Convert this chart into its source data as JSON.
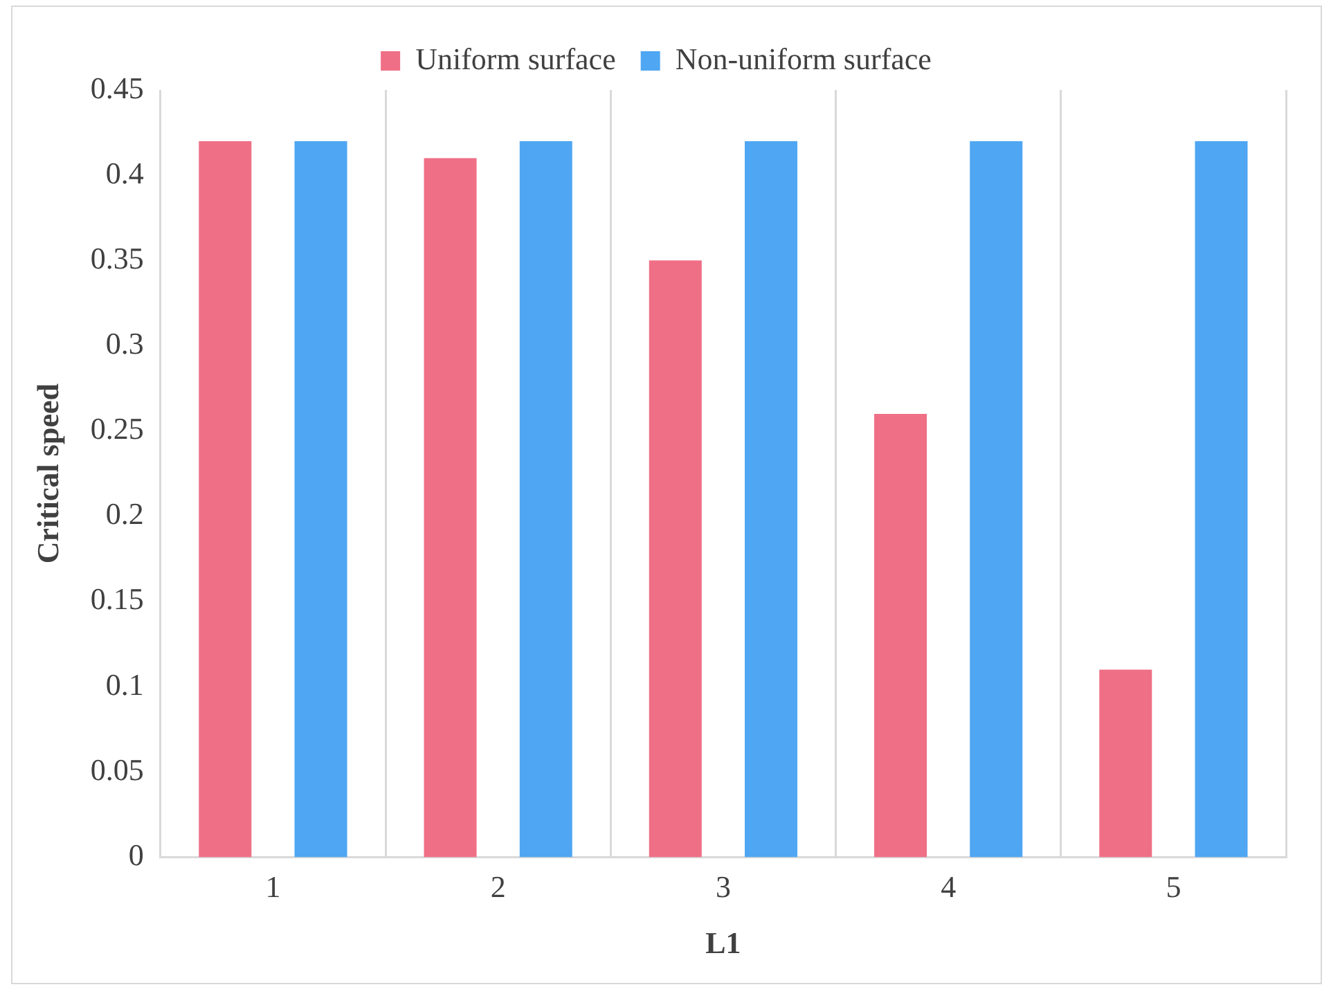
{
  "chart_data": {
    "type": "bar",
    "xlabel": "L1",
    "ylabel": "Critical speed",
    "categories": [
      "1",
      "2",
      "3",
      "4",
      "5"
    ],
    "series": [
      {
        "name": "Uniform surface",
        "color": "#ef6f86",
        "values": [
          0.42,
          0.41,
          0.35,
          0.26,
          0.11
        ]
      },
      {
        "name": "Non-uniform surface",
        "color": "#4fa6f2",
        "values": [
          0.42,
          0.42,
          0.42,
          0.42,
          0.42
        ]
      }
    ],
    "ylim": [
      0,
      0.45
    ],
    "yticks": [
      0,
      0.05,
      0.1,
      0.15,
      0.2,
      0.25,
      0.3,
      0.35,
      0.4,
      0.45
    ],
    "grid": "x",
    "legend": "top"
  }
}
